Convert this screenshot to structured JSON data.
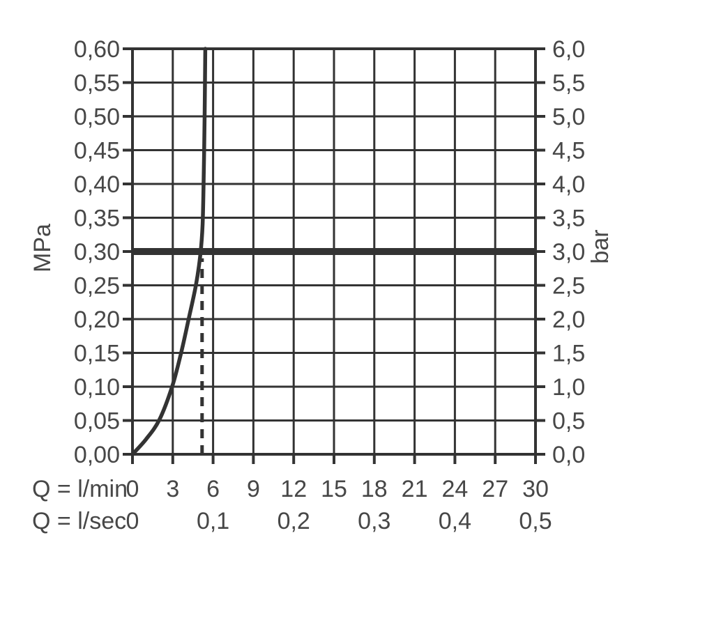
{
  "chart_data": {
    "type": "line",
    "title": "",
    "grid": true,
    "colors": {
      "ink": "#333333",
      "text": "#474747",
      "background": "#ffffff"
    },
    "left_axis": {
      "unit": "MPa",
      "min": 0,
      "max": 0.6,
      "step": 0.05,
      "tick_labels_top_to_bottom": [
        "0,60",
        "0,55",
        "0,50",
        "0,45",
        "0,40",
        "0,35",
        "0,30",
        "0,25",
        "0,20",
        "0,15",
        "0,10",
        "0,05",
        "0,00"
      ]
    },
    "right_axis": {
      "unit": "bar",
      "min": 0,
      "max": 6,
      "step": 0.5,
      "tick_labels_top_to_bottom": [
        "6,0",
        "5,5",
        "5,0",
        "4,5",
        "4,0",
        "3,5",
        "3,0",
        "2,5",
        "2,0",
        "1,5",
        "1,0",
        "0,5",
        "0,0"
      ]
    },
    "x_axis_lmin": {
      "label": "Q = l/min",
      "min": 0,
      "max": 30,
      "step": 3,
      "ticks": [
        {
          "value": 0,
          "label": "0"
        },
        {
          "value": 3,
          "label": "3"
        },
        {
          "value": 6,
          "label": "6"
        },
        {
          "value": 9,
          "label": "9"
        },
        {
          "value": 12,
          "label": "12"
        },
        {
          "value": 15,
          "label": "15"
        },
        {
          "value": 18,
          "label": "18"
        },
        {
          "value": 21,
          "label": "21"
        },
        {
          "value": 24,
          "label": "24"
        },
        {
          "value": 27,
          "label": "27"
        },
        {
          "value": 30,
          "label": "30"
        }
      ]
    },
    "x_axis_lsec": {
      "label": "Q = l/sec",
      "ticks": [
        {
          "value_lmin": 0,
          "label": "0"
        },
        {
          "value_lmin": 6,
          "label": "0,1"
        },
        {
          "value_lmin": 12,
          "label": "0,2"
        },
        {
          "value_lmin": 18,
          "label": "0,3"
        },
        {
          "value_lmin": 24,
          "label": "0,4"
        },
        {
          "value_lmin": 30,
          "label": "0,5"
        }
      ]
    },
    "series": [
      {
        "name": "flow-curve",
        "points_lmin_mpa": [
          [
            0,
            0
          ],
          [
            1.0,
            0.022
          ],
          [
            2.0,
            0.051
          ],
          [
            2.95,
            0.1
          ],
          [
            3.62,
            0.15
          ],
          [
            4.18,
            0.2
          ],
          [
            4.72,
            0.25
          ],
          [
            5.05,
            0.295
          ],
          [
            5.22,
            0.34
          ],
          [
            5.31,
            0.42
          ],
          [
            5.37,
            0.5
          ],
          [
            5.42,
            0.6
          ]
        ]
      }
    ],
    "reference_lines": {
      "horizontal_thick": {
        "mpa": 0.3,
        "bar": 3.0
      },
      "vertical_dashed": {
        "lmin": 5.18,
        "from_mpa": 0,
        "to_mpa": 0.29
      }
    }
  }
}
